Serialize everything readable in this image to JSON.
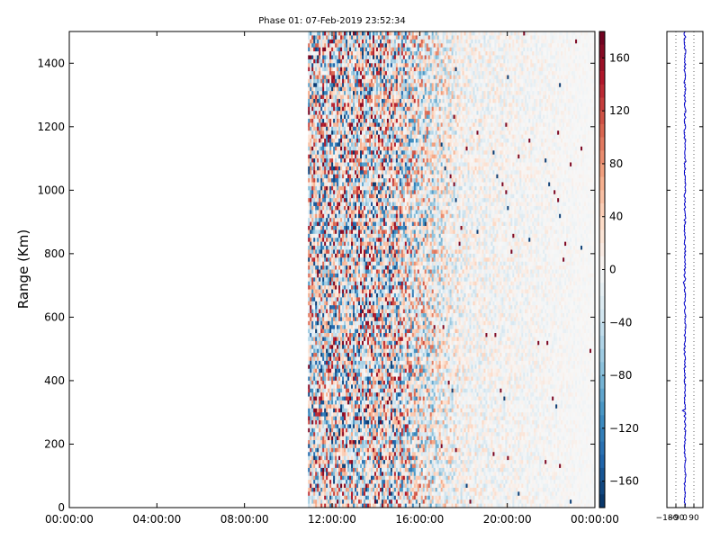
{
  "chart_data": [
    {
      "type": "heatmap",
      "title": "Phase 01: 07-Feb-2019 23:52:34",
      "xlabel": "",
      "ylabel": "Range (Km)",
      "x_ticks": [
        "00:00:00",
        "04:00:00",
        "08:00:00",
        "12:00:00",
        "16:00:00",
        "20:00:00",
        "00:00:00"
      ],
      "x_range_hours": [
        0,
        24
      ],
      "y_ticks": [
        0,
        200,
        400,
        600,
        800,
        1000,
        1200,
        1400
      ],
      "ylim": [
        0,
        1500
      ],
      "data_start_hour": 10.9,
      "data_end_hour": 24,
      "description_of_values": "phase in degrees; strong red/blue scatter near 11-14 h fading to near zero toward 24 h",
      "colorbar": {
        "ticks": [
          160,
          120,
          80,
          40,
          0,
          -40,
          -80,
          -120,
          -160
        ],
        "range": [
          -180,
          180
        ],
        "colormap": "RdBu_r"
      }
    },
    {
      "type": "line",
      "x_ticks": [
        "-180",
        "-90",
        "0",
        "90"
      ],
      "xlim": [
        -180,
        180
      ],
      "ylim": [
        0,
        1500
      ],
      "series_color": "#0000cc",
      "mean_value": 0
    }
  ]
}
